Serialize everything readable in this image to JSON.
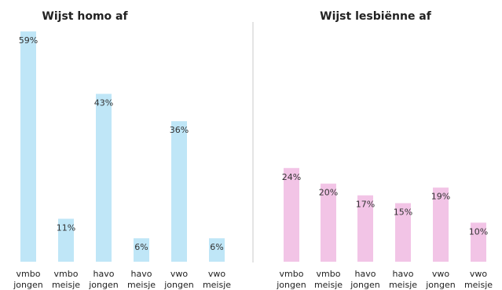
{
  "chart_data": [
    {
      "type": "bar",
      "title": "Wijst homo af",
      "color": "#bfe6f7",
      "categories": [
        [
          "vmbo",
          "jongen"
        ],
        [
          "vmbo",
          "meisje"
        ],
        [
          "havo",
          "jongen"
        ],
        [
          "havo",
          "meisje"
        ],
        [
          "vwo",
          "jongen"
        ],
        [
          "vwo",
          "meisje"
        ]
      ],
      "values": [
        59,
        11,
        43,
        6,
        36,
        6
      ],
      "data_labels": [
        "59%",
        "11%",
        "43%",
        "6%",
        "36%",
        "6%"
      ],
      "ylim": [
        0,
        60
      ]
    },
    {
      "type": "bar",
      "title": "Wijst lesbiënne af",
      "color": "#f2c4e6",
      "categories": [
        [
          "vmbo",
          "jongen"
        ],
        [
          "vmbo",
          "meisje"
        ],
        [
          "havo",
          "jongen"
        ],
        [
          "havo",
          "meisje"
        ],
        [
          "vwo",
          "jongen"
        ],
        [
          "vwo",
          "meisje"
        ]
      ],
      "values": [
        24,
        20,
        17,
        15,
        19,
        10
      ],
      "data_labels": [
        "24%",
        "20%",
        "17%",
        "15%",
        "19%",
        "10%"
      ],
      "ylim": [
        0,
        60
      ]
    }
  ]
}
